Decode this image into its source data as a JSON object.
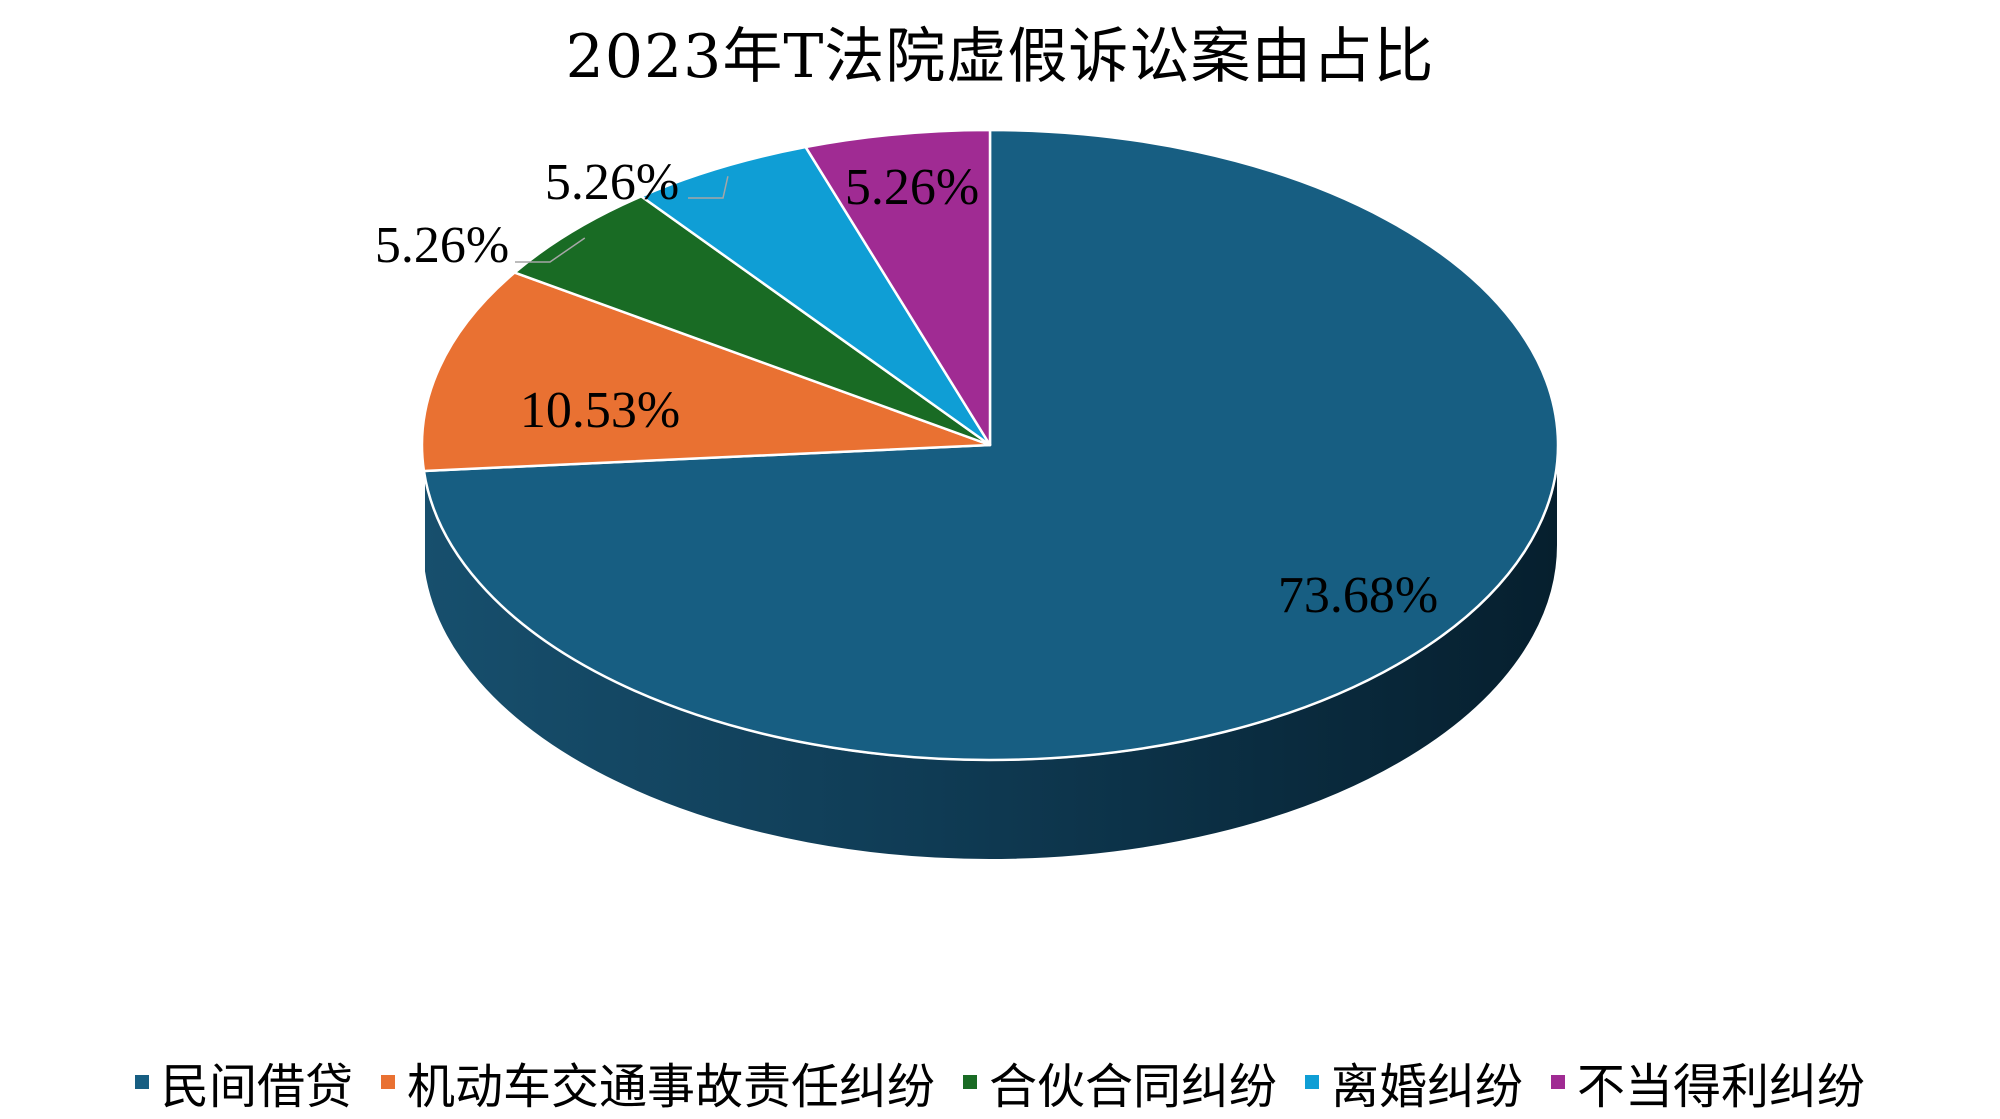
{
  "chart_data": {
    "type": "pie",
    "title": "2023年T法院虚假诉讼案由占比",
    "categories": [
      "民间借贷",
      "机动车交通事故责任纠纷",
      "合伙合同纠纷",
      "离婚纠纷",
      "不当得利纠纷"
    ],
    "values": [
      73.68,
      10.53,
      5.26,
      5.26,
      5.26
    ],
    "data_labels": [
      "73.68%",
      "10.53%",
      "5.26%",
      "5.26%",
      "5.26%"
    ],
    "colors": [
      "#175E82",
      "#E97132",
      "#196B24",
      "#0F9ED5",
      "#A02B93"
    ],
    "legend_position": "bottom",
    "style": "3d"
  }
}
